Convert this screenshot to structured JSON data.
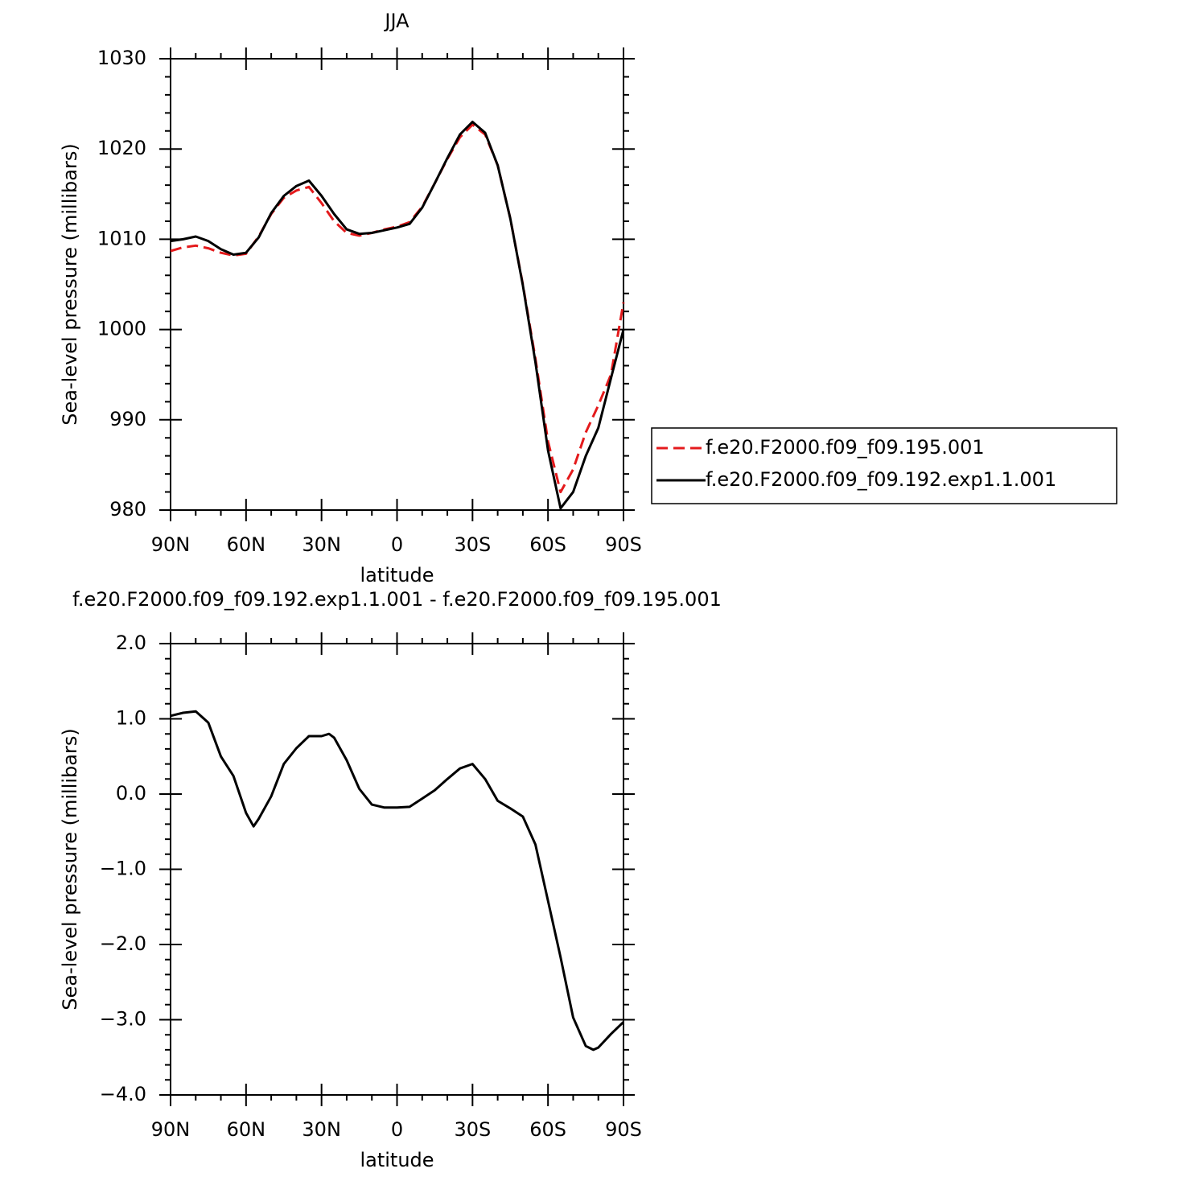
{
  "chart_data": [
    {
      "type": "line",
      "title": "JJA",
      "xlabel": "latitude",
      "ylabel": "Sea-level pressure (millibars)",
      "x": [
        90,
        85,
        80,
        75,
        70,
        65,
        60,
        55,
        50,
        45,
        40,
        35,
        30,
        25,
        20,
        15,
        10,
        5,
        0,
        -5,
        -10,
        -15,
        -20,
        -25,
        -30,
        -35,
        -40,
        -45,
        -50,
        -55,
        -60,
        -65,
        -70,
        -75,
        -80,
        -85,
        -90
      ],
      "series": [
        {
          "name": "f.e20.F2000.f09_f09.195.001",
          "color": "#e41a1c",
          "dash": true,
          "values": [
            1008.7,
            1009.1,
            1009.3,
            1009.0,
            1008.5,
            1008.2,
            1008.4,
            1010.3,
            1012.8,
            1014.6,
            1015.4,
            1015.8,
            1014.0,
            1012.0,
            1010.7,
            1010.4,
            1010.7,
            1011.1,
            1011.4,
            1011.9,
            1013.6,
            1016.2,
            1018.9,
            1021.3,
            1022.7,
            1021.6,
            1018.2,
            1012.3,
            1005.0,
            996.8,
            987.6,
            982.0,
            984.5,
            988.6,
            991.6,
            995.0,
            1003.0
          ]
        },
        {
          "name": "f.e20.F2000.f09_f09.192.exp1.1.001",
          "color": "#000000",
          "dash": false,
          "values": [
            1009.8,
            1010.0,
            1010.3,
            1009.8,
            1008.9,
            1008.3,
            1008.5,
            1010.2,
            1012.9,
            1014.8,
            1015.9,
            1016.5,
            1014.8,
            1012.8,
            1011.1,
            1010.6,
            1010.7,
            1011.0,
            1011.3,
            1011.7,
            1013.5,
            1016.2,
            1019.0,
            1021.6,
            1023.0,
            1021.8,
            1018.2,
            1012.3,
            1004.9,
            996.4,
            986.6,
            980.2,
            982.0,
            986.0,
            989.1,
            994.6,
            1000.0
          ]
        }
      ],
      "xlim": [
        90,
        -90
      ],
      "xticks": [
        {
          "value": 90,
          "label": "90N"
        },
        {
          "value": 60,
          "label": "60N"
        },
        {
          "value": 30,
          "label": "30N"
        },
        0,
        {
          "value": -30,
          "label": "30S"
        },
        {
          "value": -60,
          "label": "60S"
        },
        {
          "value": -90,
          "label": "90S"
        }
      ],
      "ylim": [
        980,
        1030
      ],
      "yticks": [
        980,
        990,
        1000,
        1010,
        1020,
        1030
      ],
      "legend": "right"
    },
    {
      "type": "line",
      "title": "f.e20.F2000.f09_f09.192.exp1.1.001 - f.e20.F2000.f09_f09.195.001",
      "xlabel": "latitude",
      "ylabel": "Sea-level pressure (millibars)",
      "x": [
        90,
        85,
        80,
        75,
        70,
        65,
        60,
        57,
        55,
        50,
        45,
        40,
        35,
        30,
        27,
        25,
        20,
        15,
        10,
        5,
        0,
        -5,
        -10,
        -15,
        -20,
        -25,
        -30,
        -35,
        -40,
        -45,
        -50,
        -55,
        -60,
        -65,
        -70,
        -75,
        -78,
        -80,
        -85,
        -90
      ],
      "series": [
        {
          "color": "#000000",
          "dash": false,
          "values": [
            1.04,
            1.08,
            1.1,
            0.95,
            0.5,
            0.24,
            -0.25,
            -0.43,
            -0.33,
            -0.03,
            0.4,
            0.61,
            0.77,
            0.77,
            0.8,
            0.75,
            0.45,
            0.07,
            -0.14,
            -0.18,
            -0.18,
            -0.17,
            -0.06,
            0.05,
            0.2,
            0.34,
            0.4,
            0.2,
            -0.09,
            -0.19,
            -0.3,
            -0.67,
            -1.42,
            -2.17,
            -2.97,
            -3.35,
            -3.4,
            -3.37,
            -3.19,
            -3.03
          ]
        }
      ],
      "xlim": [
        90,
        -90
      ],
      "xticks": [
        {
          "value": 90,
          "label": "90N"
        },
        {
          "value": 60,
          "label": "60N"
        },
        {
          "value": 30,
          "label": "30N"
        },
        0,
        {
          "value": -30,
          "label": "30S"
        },
        {
          "value": -60,
          "label": "60S"
        },
        {
          "value": -90,
          "label": "90S"
        }
      ],
      "ylim": [
        -4,
        2
      ],
      "yticks": [
        {
          "value": -4,
          "label": "−4.0"
        },
        {
          "value": -3,
          "label": "−3.0"
        },
        {
          "value": -2,
          "label": "−2.0"
        },
        {
          "value": -1,
          "label": "−1.0"
        },
        {
          "value": 0,
          "label": "0.0"
        },
        {
          "value": 1,
          "label": "1.0"
        },
        {
          "value": 2,
          "label": "2.0"
        }
      ]
    }
  ]
}
